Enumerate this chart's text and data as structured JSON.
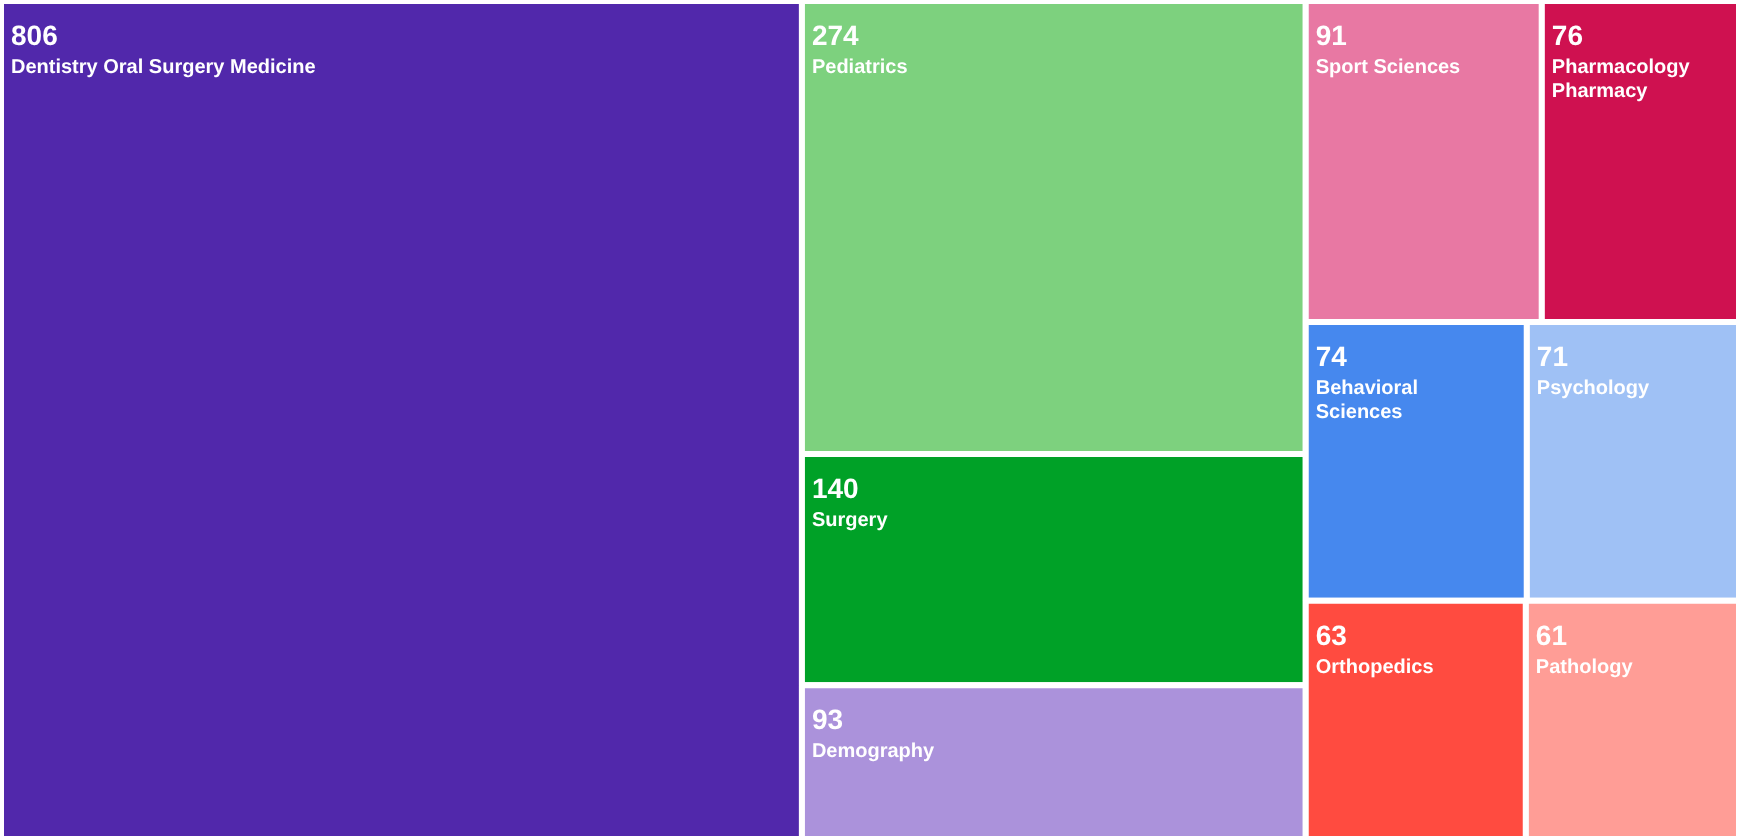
{
  "chart_data": {
    "type": "other",
    "categories": [
      "Dentistry Oral Surgery Medicine",
      "Pediatrics",
      "Surgery",
      "Demography",
      "Sport Sciences",
      "Pharmacology Pharmacy",
      "Behavioral Sciences",
      "Psychology",
      "Orthopedics",
      "Pathology"
    ],
    "values": [
      806,
      274,
      140,
      93,
      91,
      76,
      74,
      71,
      63,
      61
    ],
    "colors": [
      "#5128ab",
      "#7dd17e",
      "#00a127",
      "#ab92db",
      "#e878a3",
      "#cf1150",
      "#4688ee",
      "#9fc1f5",
      "#ff4b40",
      "#ff9d96"
    ],
    "data_labels": true
  }
}
